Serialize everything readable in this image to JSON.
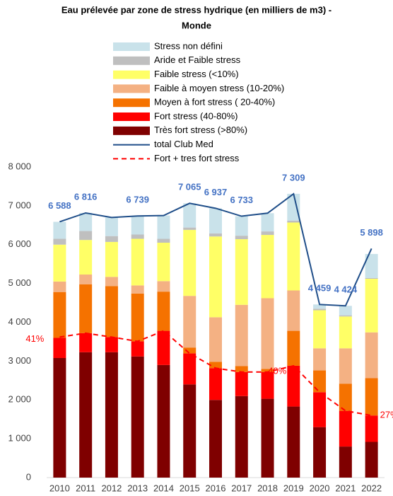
{
  "chart_data": {
    "type": "bar",
    "title": "Eau prélevée par zone de stress hydrique (en milliers de m3) -",
    "subtitle": "Monde",
    "categories": [
      "2010",
      "2011",
      "2012",
      "2013",
      "2014",
      "2015",
      "2016",
      "2017",
      "2018",
      "2019",
      "2020",
      "2021",
      "2022"
    ],
    "ylim": [
      0,
      8000
    ],
    "yticks": [
      0,
      {
        "value": 1000,
        "label": "1 000"
      },
      {
        "value": 2000,
        "label": "2 000"
      },
      {
        "value": 3000,
        "label": "3 000"
      },
      {
        "value": 4000,
        "label": "4 000"
      },
      {
        "value": 5000,
        "label": "5 000"
      },
      {
        "value": 6000,
        "label": "6 000"
      },
      {
        "value": 7000,
        "label": "7 000"
      },
      {
        "value": 8000,
        "label": "8 000"
      }
    ],
    "series": [
      {
        "name": "Stress non défini",
        "color": "#c9e2ea",
        "values": [
          438,
          466,
          480,
          479,
          600,
          625,
          647,
          503,
          470,
          689,
          109,
          244,
          620
        ]
      },
      {
        "name": "Aride et Faible stress",
        "color": "#bfbfbf",
        "values": [
          150,
          230,
          150,
          110,
          100,
          60,
          80,
          90,
          90,
          50,
          40,
          30,
          20
        ]
      },
      {
        "name": "Faible stress (<10%)",
        "color": "#ffff66",
        "values": [
          950,
          890,
          900,
          1200,
          990,
          1700,
          2080,
          1690,
          1630,
          1750,
          980,
          820,
          1380
        ]
      },
      {
        "name": "Faible à moyen stress (10-20%)",
        "color": "#f4b183",
        "values": [
          270,
          250,
          240,
          210,
          270,
          1330,
          1150,
          1580,
          1820,
          1040,
          570,
          910,
          1180
        ]
      },
      {
        "name": "Moyen à fort stress ( 20-40%)",
        "color": "#f57200",
        "values": [
          1180,
          1260,
          1310,
          1230,
          1010,
          150,
          160,
          150,
          80,
          900,
          560,
          700,
          960
        ]
      },
      {
        "name": "Fort stress (40-80%)",
        "color": "#ff0000",
        "values": [
          520,
          490,
          390,
          390,
          880,
          800,
          820,
          620,
          690,
          1050,
          900,
          920,
          680
        ]
      },
      {
        "name": "Très fort stress (>80%)",
        "color": "#7f0000",
        "values": [
          3080,
          3230,
          3230,
          3120,
          2900,
          2400,
          2000,
          2100,
          2030,
          1830,
          1300,
          800,
          920
        ]
      },
      {
        "name": "total Club Med",
        "type": "line",
        "color": "#1f4e89",
        "values": [
          6588,
          6816,
          6700,
          6739,
          6750,
          7065,
          6937,
          6733,
          6810,
          7309,
          4459,
          4424,
          5898
        ],
        "value_labels": [
          "6 588",
          "6 816",
          null,
          "6 739",
          null,
          "7 065",
          "6 937",
          "6 733",
          null,
          "7 309",
          "4 459",
          "4 424",
          "5 898"
        ]
      },
      {
        "name": "Fort + tres fort stress",
        "type": "line",
        "dashed": true,
        "color": "#ff0000",
        "values": [
          3620,
          3720,
          3620,
          3510,
          3780,
          3200,
          2820,
          2720,
          2720,
          2880,
          2200,
          1720,
          1600
        ]
      }
    ],
    "annotations": [
      {
        "category": "2010",
        "text": "41%"
      },
      {
        "category": "2019",
        "text": "40%"
      },
      {
        "category": "2022",
        "text": "27%"
      }
    ]
  }
}
